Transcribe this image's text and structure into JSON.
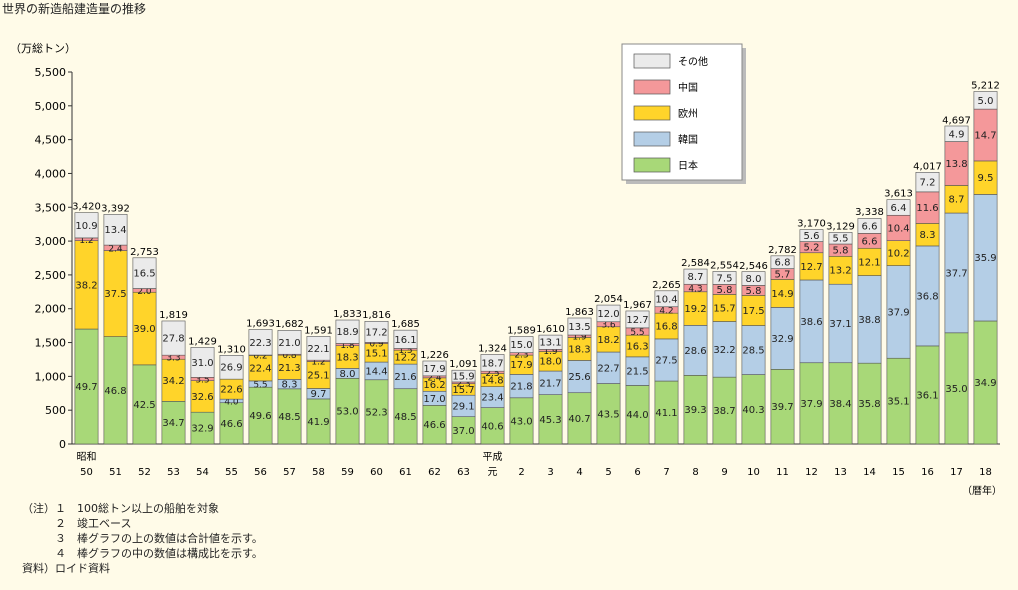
{
  "title": "世界の新造船建造量の推移",
  "chart_data": {
    "type": "stacked-bar",
    "title": "世界の新造船建造量の推移",
    "ylabel": "（万総トン）",
    "xunit": "（暦年）",
    "ylim": [
      0,
      5500
    ],
    "yticks": [
      0,
      500,
      1000,
      1500,
      2000,
      2500,
      3000,
      3500,
      4000,
      4500,
      5000,
      5500
    ],
    "ytick_labels": [
      "0",
      "500",
      "1,000",
      "1,500",
      "2,000",
      "2,500",
      "3,000",
      "3,500",
      "4,000",
      "4,500",
      "5,000",
      "5,500"
    ],
    "categories": [
      "50",
      "51",
      "52",
      "53",
      "54",
      "55",
      "56",
      "57",
      "58",
      "59",
      "60",
      "61",
      "62",
      "63",
      "元",
      "2",
      "3",
      "4",
      "5",
      "6",
      "7",
      "8",
      "9",
      "10",
      "11",
      "12",
      "13",
      "14",
      "15",
      "16",
      "17",
      "18"
    ],
    "era_labels": [
      {
        "index": 0,
        "label": "昭和"
      },
      {
        "index": 14,
        "label": "平成"
      }
    ],
    "totals": [
      3420,
      3392,
      2753,
      1819,
      1429,
      1310,
      1693,
      1682,
      1591,
      1833,
      1816,
      1685,
      1226,
      1091,
      1324,
      1589,
      1610,
      1863,
      2054,
      1967,
      2265,
      2584,
      2554,
      2546,
      2782,
      3170,
      3129,
      3338,
      3613,
      4017,
      4697,
      5212
    ],
    "total_labels": [
      "3,420",
      "3,392",
      "2,753",
      "1,819",
      "1,429",
      "1,310",
      "1,693",
      "1,682",
      "1,591",
      "1,833",
      "1,816",
      "1,685",
      "1,226",
      "1,091",
      "1,324",
      "1,589",
      "1,610",
      "1,863",
      "2,054",
      "1,967",
      "2,265",
      "2,584",
      "2,554",
      "2,546",
      "2,782",
      "3,170",
      "3,129",
      "3,338",
      "3,613",
      "4,017",
      "4,697",
      "5,212"
    ],
    "series": [
      {
        "name": "日本",
        "color": "#a8d878",
        "values": [
          "49.7",
          "46.8",
          "42.5",
          "34.7",
          "32.9",
          "46.6",
          "49.6",
          "48.5",
          "41.9",
          "53.0",
          "52.3",
          "48.5",
          "46.6",
          "37.0",
          "40.6",
          "43.0",
          "45.3",
          "40.7",
          "43.5",
          "44.0",
          "41.1",
          "39.3",
          "38.7",
          "40.3",
          "39.7",
          "37.9",
          "38.4",
          "35.8",
          "35.1",
          "36.1",
          "35.0",
          "34.9"
        ]
      },
      {
        "name": "韓国",
        "color": "#b4cee6",
        "values": [
          "",
          "",
          "",
          "",
          "",
          "4.0",
          "5.5",
          "8.3",
          "9.7",
          "8.0",
          "14.4",
          "21.6",
          "17.0",
          "29.1",
          "23.4",
          "21.8",
          "21.7",
          "25.6",
          "22.7",
          "21.5",
          "27.5",
          "28.6",
          "32.2",
          "28.5",
          "32.9",
          "38.6",
          "37.1",
          "38.8",
          "37.9",
          "36.8",
          "37.7",
          "35.9"
        ]
      },
      {
        "name": "欧州",
        "color": "#ffd42a",
        "values": [
          "38.2",
          "37.5",
          "39.0",
          "34.2",
          "32.6",
          "22.6",
          "22.4",
          "21.3",
          "25.1",
          "18.3",
          "15.1",
          "12.2",
          "16.2",
          "15.7",
          "14.8",
          "17.9",
          "18.0",
          "18.3",
          "18.2",
          "16.3",
          "16.8",
          "19.2",
          "15.7",
          "17.5",
          "14.9",
          "12.7",
          "13.2",
          "12.1",
          "10.2",
          "8.3",
          "8.7",
          "9.5"
        ]
      },
      {
        "name": "中国",
        "color": "#f4989a",
        "values": [
          "1.2",
          "2.4",
          "2.0",
          "3.3",
          "3.5",
          "",
          "0.2",
          "0.8",
          "1.2",
          "1.8",
          "0.9",
          "1.5",
          "2.4",
          "2.3",
          "2.5",
          "2.3",
          "1.9",
          "1.9",
          "3.6",
          "5.5",
          "4.2",
          "4.3",
          "5.8",
          "5.8",
          "5.7",
          "5.2",
          "5.8",
          "6.6",
          "10.4",
          "11.6",
          "13.8",
          "14.7"
        ]
      },
      {
        "name": "その他",
        "color": "#ebebeb",
        "values": [
          "10.9",
          "13.4",
          "16.5",
          "27.8",
          "31.0",
          "26.9",
          "22.3",
          "21.0",
          "22.1",
          "18.9",
          "17.2",
          "16.1",
          "17.9",
          "15.9",
          "18.7",
          "15.0",
          "13.1",
          "13.5",
          "12.0",
          "12.7",
          "10.4",
          "8.7",
          "7.5",
          "8.0",
          "6.8",
          "5.6",
          "5.5",
          "6.6",
          "6.4",
          "7.2",
          "4.9",
          "5.0"
        ]
      }
    ],
    "legend_order": [
      "その他",
      "中国",
      "欧州",
      "韓国",
      "日本"
    ],
    "legend_position": "top-right"
  },
  "notes": [
    "（注）１　100総トン以上の船舶を対象",
    "　　　２　竣工ベース",
    "　　　３　棒グラフの上の数値は合計値を示す。",
    "　　　４　棒グラフの中の数値は構成比を示す。",
    "資料）ロイド資料"
  ]
}
